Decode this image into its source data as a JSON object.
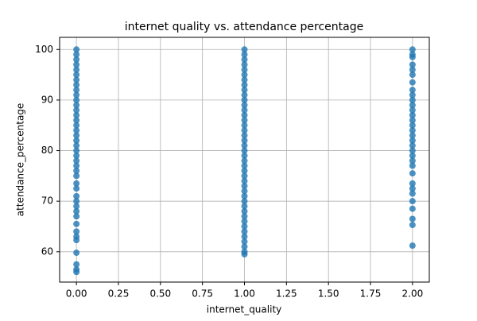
{
  "chart_data": {
    "type": "scatter",
    "title": "internet quality vs. attendance percentage",
    "x_label": "internet_quality",
    "y_label": "attendance_percentage",
    "color": "#1f77b4",
    "grid": true,
    "xlim": [
      -0.1,
      2.1
    ],
    "ylim": [
      54.0,
      102.4
    ],
    "xticks": [
      {
        "value": 0,
        "label": "0.00"
      },
      {
        "value": 0.25,
        "label": "0.25"
      },
      {
        "value": 0.5,
        "label": "0.50"
      },
      {
        "value": 0.75,
        "label": "0.75"
      },
      {
        "value": 1,
        "label": "1.00"
      },
      {
        "value": 1.25,
        "label": "1.25"
      },
      {
        "value": 1.5,
        "label": "1.50"
      },
      {
        "value": 1.75,
        "label": "1.75"
      },
      {
        "value": 2,
        "label": "2.00"
      }
    ],
    "yticks": [
      60,
      70,
      80,
      90,
      100
    ],
    "x": [
      0,
      0,
      0,
      0,
      0,
      0,
      0,
      0,
      0,
      0,
      0,
      0,
      0,
      0,
      0,
      0,
      0,
      0,
      0,
      0,
      0,
      0,
      0,
      0,
      0,
      0,
      0,
      0,
      0,
      0,
      0,
      0,
      0,
      0,
      0,
      0,
      0,
      0,
      0,
      0,
      0,
      1,
      1,
      1,
      1,
      1,
      1,
      1,
      1,
      1,
      1,
      1,
      1,
      1,
      1,
      1,
      1,
      1,
      1,
      1,
      1,
      1,
      1,
      1,
      1,
      1,
      1,
      1,
      1,
      1,
      1,
      1,
      1,
      1,
      1,
      1,
      1,
      1,
      1,
      1,
      1,
      1,
      1,
      2,
      2,
      2,
      2,
      2,
      2,
      2,
      2,
      2,
      2,
      2,
      2,
      2,
      2,
      2,
      2,
      2,
      2,
      2,
      2,
      2,
      2,
      2,
      2,
      2,
      2,
      2,
      2,
      2,
      2,
      2,
      2
    ],
    "values": [
      56,
      56.5,
      57.5,
      59.8,
      62.3,
      63,
      64,
      65.5,
      67,
      68,
      69,
      70,
      71,
      72.5,
      73.5,
      75,
      76,
      77,
      78,
      79,
      80,
      81,
      82,
      83,
      84,
      85,
      86,
      87,
      88,
      89,
      90,
      91,
      92,
      93,
      94,
      95,
      96,
      97,
      98,
      99,
      100,
      59.5,
      60,
      61,
      62,
      63,
      64,
      65,
      66,
      67,
      68,
      69,
      70,
      71,
      72,
      73,
      74,
      75,
      76,
      77,
      78,
      79,
      80,
      81,
      82,
      83,
      84,
      85,
      86,
      87,
      88,
      89,
      90,
      91,
      92,
      93,
      94,
      95,
      96,
      97,
      98,
      99,
      100,
      61.2,
      65.3,
      66.5,
      68.5,
      70,
      71.5,
      72.5,
      73.5,
      75.5,
      77,
      78,
      79,
      80,
      81,
      82,
      83,
      84,
      85,
      86,
      87,
      88,
      89,
      90,
      91,
      92,
      93.5,
      95,
      96,
      97,
      98.5,
      99,
      100
    ]
  }
}
